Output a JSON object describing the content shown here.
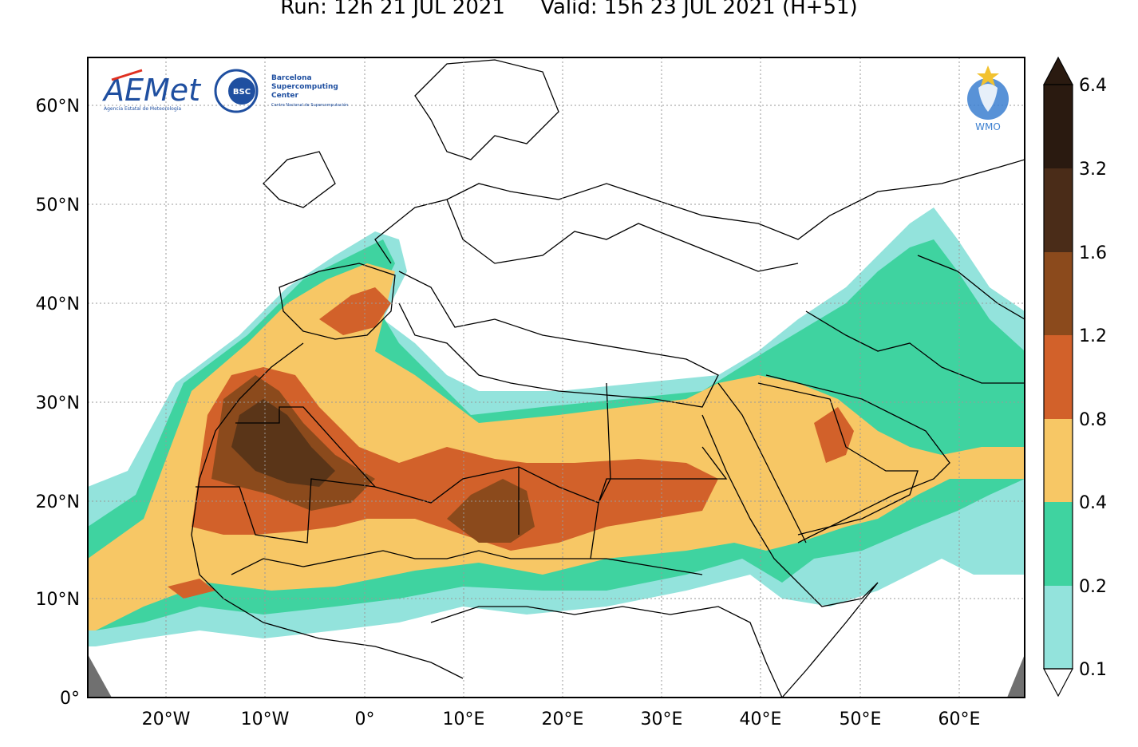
{
  "title": {
    "run": "Run: 12h 21 JUL 2021",
    "valid": "Valid: 15h 23 JUL 2021 (H+51)"
  },
  "logos": {
    "aemet": "AEMet",
    "aemet_sub": "Agencia Estatal de Meteorología",
    "bsc_badge": "BSC",
    "bsc_name_line1": "Barcelona",
    "bsc_name_line2": "Supercomputing",
    "bsc_name_line3": "Center",
    "bsc_sub": "Centro Nacional de Supercomputación",
    "wmo": "WMO"
  },
  "axes": {
    "lat_labels": [
      "60°N",
      "50°N",
      "40°N",
      "30°N",
      "20°N",
      "10°N",
      "0°"
    ],
    "lon_labels": [
      "20°W",
      "10°W",
      "0°",
      "10°E",
      "20°E",
      "30°E",
      "40°E",
      "50°E",
      "60°E"
    ]
  },
  "colorbar": {
    "levels": [
      "6.4",
      "3.2",
      "1.6",
      "1.2",
      "0.8",
      "0.4",
      "0.2",
      "0.1"
    ],
    "colors": [
      "#2a1a10",
      "#4a2c18",
      "#8b4a1c",
      "#d2612a",
      "#f7c765",
      "#3fd3a0",
      "#93e3dc",
      "#ffffff"
    ]
  },
  "palette": {
    "ocean_land_bg": "#ffffff",
    "low": "#93e3dc",
    "mid": "#3fd3a0",
    "moderate": "#f7c765",
    "high": "#d2612a",
    "very_high": "#8b4a1c",
    "extreme": "#5a3518",
    "offmap": "#707070"
  }
}
